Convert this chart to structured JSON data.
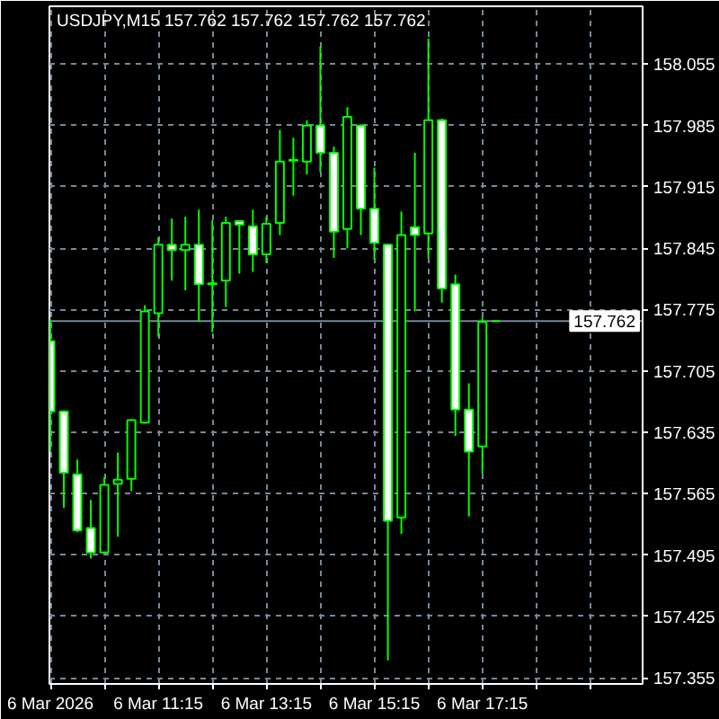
{
  "chart_data": {
    "type": "candlestick",
    "title": "USDJPY,M15 157.762 157.762 157.762 157.762",
    "x": [
      "2026-03-06T09:15",
      "2026-03-06T09:30",
      "2026-03-06T09:45",
      "2026-03-06T10:00",
      "2026-03-06T10:15",
      "2026-03-06T10:30",
      "2026-03-06T10:45",
      "2026-03-06T11:00",
      "2026-03-06T11:15",
      "2026-03-06T11:30",
      "2026-03-06T11:45",
      "2026-03-06T12:00",
      "2026-03-06T12:15",
      "2026-03-06T12:30",
      "2026-03-06T12:45",
      "2026-03-06T13:00",
      "2026-03-06T13:15",
      "2026-03-06T13:30",
      "2026-03-06T13:45",
      "2026-03-06T14:00",
      "2026-03-06T14:15",
      "2026-03-06T14:30",
      "2026-03-06T14:45",
      "2026-03-06T15:00",
      "2026-03-06T15:15",
      "2026-03-06T15:30",
      "2026-03-06T15:45",
      "2026-03-06T16:00",
      "2026-03-06T16:15",
      "2026-03-06T16:30",
      "2026-03-06T16:45",
      "2026-03-06T17:00",
      "2026-03-06T17:15",
      "2026-03-06T17:30"
    ],
    "ohlc": [
      [
        157.739,
        157.764,
        157.613,
        157.659
      ],
      [
        157.659,
        157.66,
        157.549,
        157.589
      ],
      [
        157.587,
        157.604,
        157.521,
        157.523
      ],
      [
        157.526,
        157.558,
        157.491,
        157.498
      ],
      [
        157.498,
        157.584,
        157.497,
        157.575
      ],
      [
        157.576,
        157.612,
        157.516,
        157.581
      ],
      [
        157.582,
        157.65,
        157.568,
        157.649
      ],
      [
        157.646,
        157.78,
        157.645,
        157.773
      ],
      [
        157.771,
        157.857,
        157.744,
        157.849
      ],
      [
        157.849,
        157.879,
        157.808,
        157.843
      ],
      [
        157.843,
        157.881,
        157.797,
        157.849
      ],
      [
        157.849,
        157.889,
        157.761,
        157.804
      ],
      [
        157.804,
        157.877,
        157.749,
        157.805
      ],
      [
        157.808,
        157.881,
        157.778,
        157.874
      ],
      [
        157.876,
        157.877,
        157.816,
        157.872
      ],
      [
        157.87,
        157.889,
        157.818,
        157.838
      ],
      [
        157.838,
        157.881,
        157.828,
        157.873
      ],
      [
        157.874,
        157.98,
        157.86,
        157.944
      ],
      [
        157.945,
        157.971,
        157.905,
        157.946
      ],
      [
        157.944,
        157.991,
        157.929,
        157.985
      ],
      [
        157.985,
        158.075,
        157.932,
        157.954
      ],
      [
        157.954,
        157.961,
        157.834,
        157.864
      ],
      [
        157.867,
        158.006,
        157.845,
        157.995
      ],
      [
        157.985,
        157.986,
        157.86,
        157.89
      ],
      [
        157.89,
        157.937,
        157.832,
        157.851
      ],
      [
        157.849,
        157.85,
        157.375,
        157.534
      ],
      [
        157.538,
        157.887,
        157.519,
        157.86
      ],
      [
        157.869,
        157.954,
        157.773,
        157.86
      ],
      [
        157.862,
        158.084,
        157.834,
        157.991
      ],
      [
        157.991,
        157.993,
        157.783,
        157.799
      ],
      [
        157.804,
        157.815,
        157.631,
        157.661
      ],
      [
        157.661,
        157.691,
        157.539,
        157.613
      ],
      [
        157.619,
        157.766,
        157.588,
        157.761
      ],
      [
        157.762,
        157.762,
        157.762,
        157.762
      ]
    ],
    "color": "#00ff00",
    "colors": [
      "#ffffff",
      "#ffffff",
      "#ffffff",
      "#ffffff",
      "#000000",
      "#000000",
      "#000000",
      "#000000",
      "#000000",
      "#ffffff",
      "#000000",
      "#ffffff",
      "#000000",
      "#000000",
      "#ffffff",
      "#ffffff",
      "#000000",
      "#000000",
      "#000000",
      "#000000",
      "#ffffff",
      "#ffffff",
      "#000000",
      "#ffffff",
      "#ffffff",
      "#ffffff",
      "#000000",
      "#ffffff",
      "#000000",
      "#ffffff",
      "#ffffff",
      "#ffffff",
      "#000000",
      "#00ff00"
    ],
    "xlim": [
      "2026-03-06T09:14",
      "2026-03-06T20:13"
    ],
    "xticks": [
      {
        "value": "2026-03-06T09:15",
        "label": "6 Mar 2026"
      },
      {
        "value": "2026-03-06T10:15",
        "label": null
      },
      {
        "value": "2026-03-06T11:15",
        "label": "6 Mar 11:15"
      },
      {
        "value": "2026-03-06T12:15",
        "label": null
      },
      {
        "value": "2026-03-06T13:15",
        "label": "6 Mar 13:15"
      },
      {
        "value": "2026-03-06T14:15",
        "label": null
      },
      {
        "value": "2026-03-06T15:15",
        "label": "6 Mar 15:15"
      },
      {
        "value": "2026-03-06T16:15",
        "label": null
      },
      {
        "value": "2026-03-06T17:15",
        "label": "6 Mar 17:15"
      },
      {
        "value": "2026-03-06T18:15",
        "label": null
      },
      {
        "value": "2026-03-06T19:15",
        "label": null
      }
    ],
    "ylim": [
      157.348,
      158.121
    ],
    "yticks": [
      157.355,
      157.425,
      157.495,
      157.565,
      157.635,
      157.705,
      157.775,
      157.845,
      157.915,
      157.985,
      158.055
    ],
    "grid": true,
    "ref_lines": [
      {
        "axis": "y",
        "value": 157.762,
        "label": "157.762",
        "color": "#778899"
      }
    ]
  }
}
